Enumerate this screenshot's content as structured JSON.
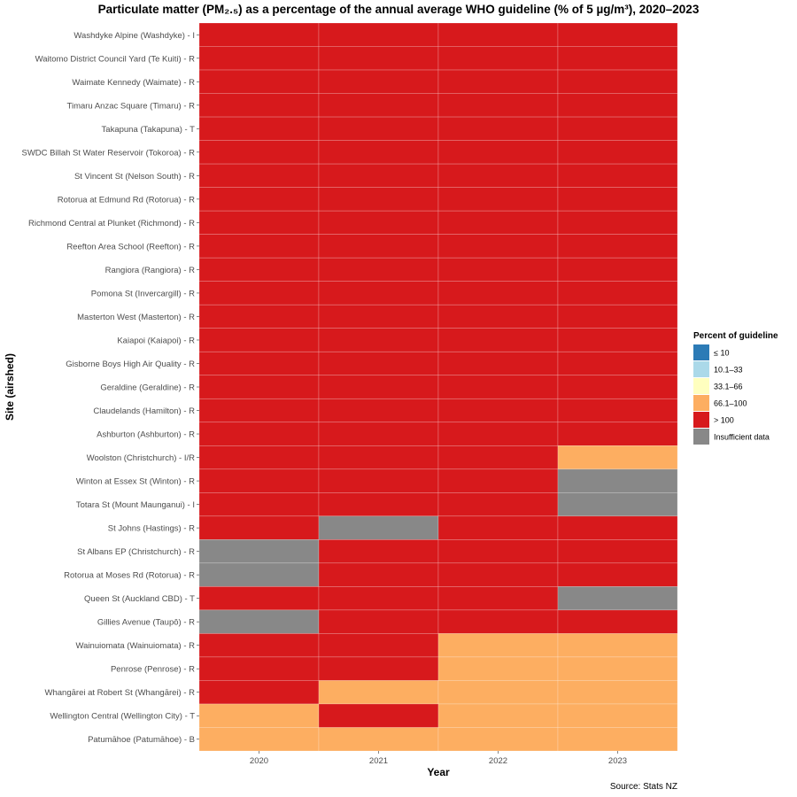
{
  "chart_data": {
    "type": "heatmap",
    "title": "Particulate matter (PM₂.₅) as a percentage of the annual average WHO guideline (% of 5 µg/m³), 2020–2023",
    "xlabel": "Year",
    "ylabel": "Site (airshed)",
    "x": [
      "2020",
      "2021",
      "2022",
      "2023"
    ],
    "legend": {
      "title": "Percent of guideline",
      "position": "right",
      "items": [
        {
          "label": "≤ 10",
          "color": "#2c7bb6"
        },
        {
          "label": "10.1–33",
          "color": "#abd9e9"
        },
        {
          "label": "33.1–66",
          "color": "#ffffbf"
        },
        {
          "label": "66.1–100",
          "color": "#fdae61"
        },
        {
          "label": "> 100",
          "color": "#d7191c"
        },
        {
          "label": "Insufficient data",
          "color": "#888888"
        }
      ]
    },
    "rows": [
      {
        "site": "Washdyke Alpine (Washdyke) - I",
        "values": [
          "> 100",
          "> 100",
          "> 100",
          "> 100"
        ]
      },
      {
        "site": "Waitomo District Council Yard (Te Kuiti) - R",
        "values": [
          "> 100",
          "> 100",
          "> 100",
          "> 100"
        ]
      },
      {
        "site": "Waimate Kennedy (Waimate) - R",
        "values": [
          "> 100",
          "> 100",
          "> 100",
          "> 100"
        ]
      },
      {
        "site": "Timaru Anzac Square (Timaru) - R",
        "values": [
          "> 100",
          "> 100",
          "> 100",
          "> 100"
        ]
      },
      {
        "site": "Takapuna (Takapuna) - T",
        "values": [
          "> 100",
          "> 100",
          "> 100",
          "> 100"
        ]
      },
      {
        "site": "SWDC Billah St Water Reservoir (Tokoroa) - R",
        "values": [
          "> 100",
          "> 100",
          "> 100",
          "> 100"
        ]
      },
      {
        "site": "St Vincent St (Nelson South) - R",
        "values": [
          "> 100",
          "> 100",
          "> 100",
          "> 100"
        ]
      },
      {
        "site": "Rotorua at Edmund Rd (Rotorua) - R",
        "values": [
          "> 100",
          "> 100",
          "> 100",
          "> 100"
        ]
      },
      {
        "site": "Richmond Central at Plunket (Richmond) - R",
        "values": [
          "> 100",
          "> 100",
          "> 100",
          "> 100"
        ]
      },
      {
        "site": "Reefton Area School (Reefton) - R",
        "values": [
          "> 100",
          "> 100",
          "> 100",
          "> 100"
        ]
      },
      {
        "site": "Rangiora (Rangiora) - R",
        "values": [
          "> 100",
          "> 100",
          "> 100",
          "> 100"
        ]
      },
      {
        "site": "Pomona St (Invercargill) - R",
        "values": [
          "> 100",
          "> 100",
          "> 100",
          "> 100"
        ]
      },
      {
        "site": "Masterton West (Masterton) - R",
        "values": [
          "> 100",
          "> 100",
          "> 100",
          "> 100"
        ]
      },
      {
        "site": "Kaiapoi (Kaiapoi) - R",
        "values": [
          "> 100",
          "> 100",
          "> 100",
          "> 100"
        ]
      },
      {
        "site": "Gisborne Boys High Air Quality - R",
        "values": [
          "> 100",
          "> 100",
          "> 100",
          "> 100"
        ]
      },
      {
        "site": "Geraldine (Geraldine) - R",
        "values": [
          "> 100",
          "> 100",
          "> 100",
          "> 100"
        ]
      },
      {
        "site": "Claudelands (Hamilton) - R",
        "values": [
          "> 100",
          "> 100",
          "> 100",
          "> 100"
        ]
      },
      {
        "site": "Ashburton (Ashburton) - R",
        "values": [
          "> 100",
          "> 100",
          "> 100",
          "> 100"
        ]
      },
      {
        "site": "Woolston (Christchurch) - I/R",
        "values": [
          "> 100",
          "> 100",
          "> 100",
          "66.1–100"
        ]
      },
      {
        "site": "Winton at Essex St (Winton) - R",
        "values": [
          "> 100",
          "> 100",
          "> 100",
          "Insufficient data"
        ]
      },
      {
        "site": "Totara St (Mount Maunganui) - I",
        "values": [
          "> 100",
          "> 100",
          "> 100",
          "Insufficient data"
        ]
      },
      {
        "site": "St Johns (Hastings) - R",
        "values": [
          "> 100",
          "Insufficient data",
          "> 100",
          "> 100"
        ]
      },
      {
        "site": "St Albans EP (Christchurch) - R",
        "values": [
          "Insufficient data",
          "> 100",
          "> 100",
          "> 100"
        ]
      },
      {
        "site": "Rotorua at Moses Rd (Rotorua) - R",
        "values": [
          "Insufficient data",
          "> 100",
          "> 100",
          "> 100"
        ]
      },
      {
        "site": "Queen St (Auckland CBD) - T",
        "values": [
          "> 100",
          "> 100",
          "> 100",
          "Insufficient data"
        ]
      },
      {
        "site": "Gillies Avenue (Taupō) - R",
        "values": [
          "Insufficient data",
          "> 100",
          "> 100",
          "> 100"
        ]
      },
      {
        "site": "Wainuiomata (Wainuiomata) - R",
        "values": [
          "> 100",
          "> 100",
          "66.1–100",
          "66.1–100"
        ]
      },
      {
        "site": "Penrose (Penrose) - R",
        "values": [
          "> 100",
          "> 100",
          "66.1–100",
          "66.1–100"
        ]
      },
      {
        "site": "Whangārei at Robert St (Whangārei) - R",
        "values": [
          "> 100",
          "66.1–100",
          "66.1–100",
          "66.1–100"
        ]
      },
      {
        "site": "Wellington Central (Wellington City) - T",
        "values": [
          "66.1–100",
          "> 100",
          "66.1–100",
          "66.1–100"
        ]
      },
      {
        "site": "Patumāhoe (Patumāhoe) - B",
        "values": [
          "66.1–100",
          "66.1–100",
          "66.1–100",
          "66.1–100"
        ]
      }
    ],
    "source": "Source: Stats NZ"
  }
}
